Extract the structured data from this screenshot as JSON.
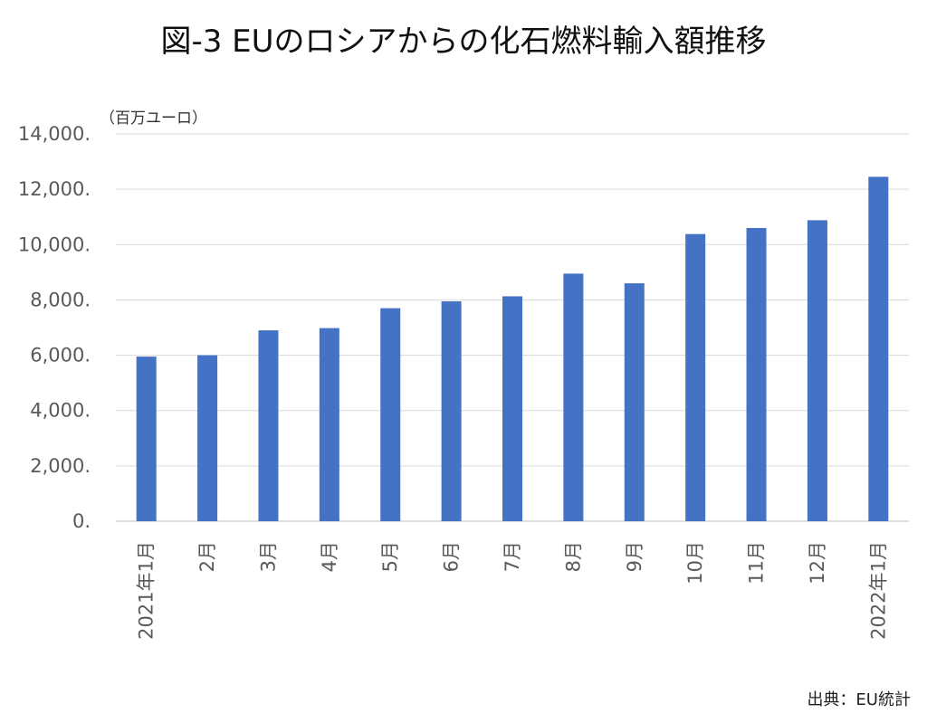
{
  "chart_data": {
    "type": "bar",
    "title": "図-3 EUのロシアからの化石燃料輸入額推移",
    "unit_label": "（百万ユーロ）",
    "source": "出典：EU統計",
    "categories": [
      "2021年1月",
      "2月",
      "3月",
      "4月",
      "5月",
      "6月",
      "7月",
      "8月",
      "9月",
      "10月",
      "11月",
      "12月",
      "2022年1月"
    ],
    "values": [
      5950,
      6000,
      6900,
      6980,
      7700,
      7950,
      8130,
      8950,
      8600,
      10380,
      10600,
      10880,
      12450
    ],
    "ylim": [
      0,
      14000
    ],
    "yticks": [
      0,
      2000,
      4000,
      6000,
      8000,
      10000,
      12000,
      14000
    ],
    "ytick_labels": [
      "0.",
      "2,000.",
      "4,000.",
      "6,000.",
      "8,000.",
      "10,000.",
      "12,000.",
      "14,000."
    ],
    "grid": true,
    "colors": {
      "bar": "#4472C4",
      "grid": "#D9D9D9",
      "axis": "#BFBFBF"
    }
  }
}
